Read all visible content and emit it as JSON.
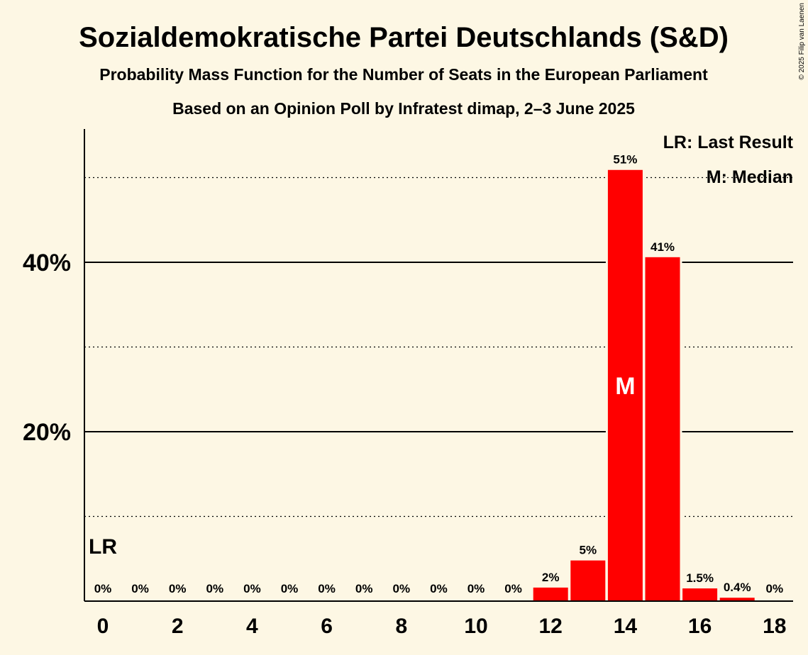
{
  "title": "Sozialdemokratische Partei Deutschlands (S&D)",
  "subtitle": "Probability Mass Function for the Number of Seats in the European Parliament",
  "subtitle2": "Based on an Opinion Poll by Infratest dimap, 2–3 June 2025",
  "copyright": "© 2025 Filip van Laenen",
  "legend": {
    "lr": "LR: Last Result",
    "median": "M: Median"
  },
  "colors": {
    "bar": "#ff0000",
    "background": "#fdf7e4"
  },
  "chart_data": {
    "type": "bar",
    "categories": [
      0,
      1,
      2,
      3,
      4,
      5,
      6,
      7,
      8,
      9,
      10,
      11,
      12,
      13,
      14,
      15,
      16,
      17,
      18
    ],
    "values": [
      0,
      0,
      0,
      0,
      0,
      0,
      0,
      0,
      0,
      0,
      0,
      0,
      1.6,
      4.8,
      50.9,
      40.6,
      1.5,
      0.4,
      0
    ],
    "labels": [
      "0%",
      "0%",
      "0%",
      "0%",
      "0%",
      "0%",
      "0%",
      "0%",
      "0%",
      "0%",
      "0%",
      "0%",
      "2%",
      "5%",
      "51%",
      "41%",
      "1.5%",
      "0.4%",
      "0%"
    ],
    "xticks": [
      0,
      2,
      4,
      6,
      8,
      10,
      12,
      14,
      16,
      18
    ],
    "yticks": [
      {
        "value": 20,
        "label": "20%"
      },
      {
        "value": 40,
        "label": "40%"
      }
    ],
    "dotted_gridlines": [
      10,
      30,
      50
    ],
    "ylim": [
      0,
      55
    ],
    "median_seat": 14,
    "median_label": "M",
    "last_result_seat": 0,
    "last_result_label": "LR",
    "xlabel": "",
    "ylabel": ""
  }
}
